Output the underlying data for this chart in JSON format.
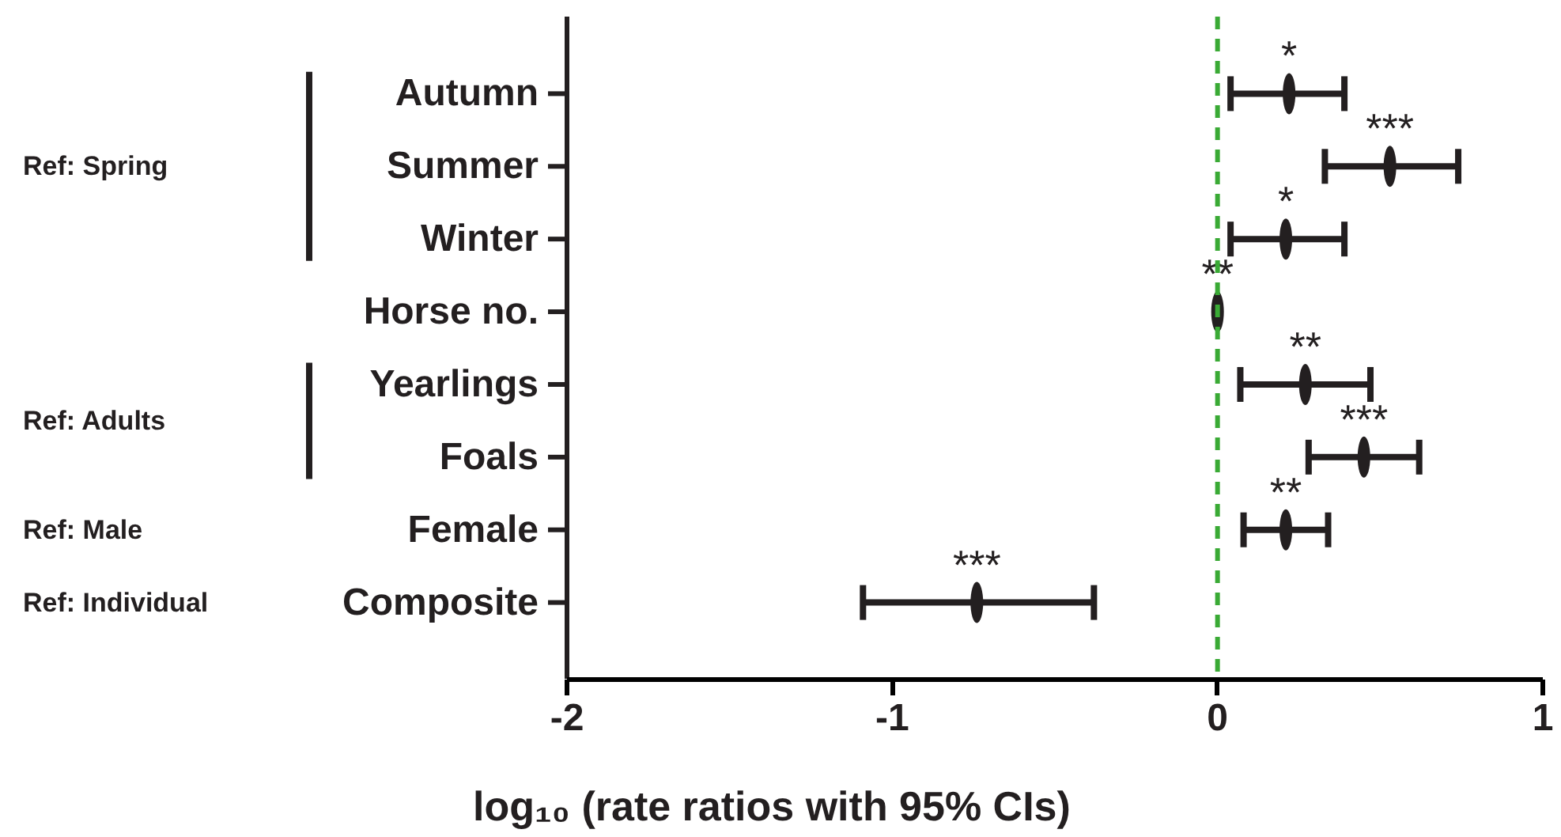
{
  "chart_data": {
    "type": "scatter",
    "orientation": "horizontal",
    "xlabel": "log₁₀ (rate ratios with 95% CIs)",
    "categories": [
      "Autumn",
      "Summer",
      "Winter",
      "Horse no.",
      "Yearlings",
      "Foals",
      "Female",
      "Composite"
    ],
    "values": [
      0.22,
      0.53,
      0.21,
      0.0,
      0.27,
      0.45,
      0.21,
      -0.74
    ],
    "errors": [
      [
        0.04,
        0.39
      ],
      [
        0.33,
        0.74
      ],
      [
        0.04,
        0.39
      ],
      null,
      [
        0.07,
        0.47
      ],
      [
        0.28,
        0.62
      ],
      [
        0.08,
        0.34
      ],
      [
        -1.09,
        -0.38
      ]
    ],
    "color": "#231f20",
    "xlim": [
      -2,
      1
    ],
    "xticks": [
      -2,
      -1,
      0,
      1
    ],
    "grid": false,
    "ref_lines": [
      {
        "axis": "x",
        "value": 0,
        "color": "#3aaa35",
        "line_style": "dashed"
      }
    ],
    "annotations": [
      {
        "text": "*",
        "x": 0.22,
        "y": "Autumn"
      },
      {
        "text": "***",
        "x": 0.53,
        "y": "Summer"
      },
      {
        "text": "*",
        "x": 0.21,
        "y": "Winter"
      },
      {
        "text": "**",
        "x": 0.0,
        "y": "Horse no."
      },
      {
        "text": "**",
        "x": 0.27,
        "y": "Yearlings"
      },
      {
        "text": "***",
        "x": 0.45,
        "y": "Foals"
      },
      {
        "text": "**",
        "x": 0.21,
        "y": "Female"
      },
      {
        "text": "***",
        "x": -0.74,
        "y": "Composite"
      },
      "Ref: Spring",
      "Ref: Adults",
      "Ref: Male",
      "Ref: Individual"
    ]
  }
}
